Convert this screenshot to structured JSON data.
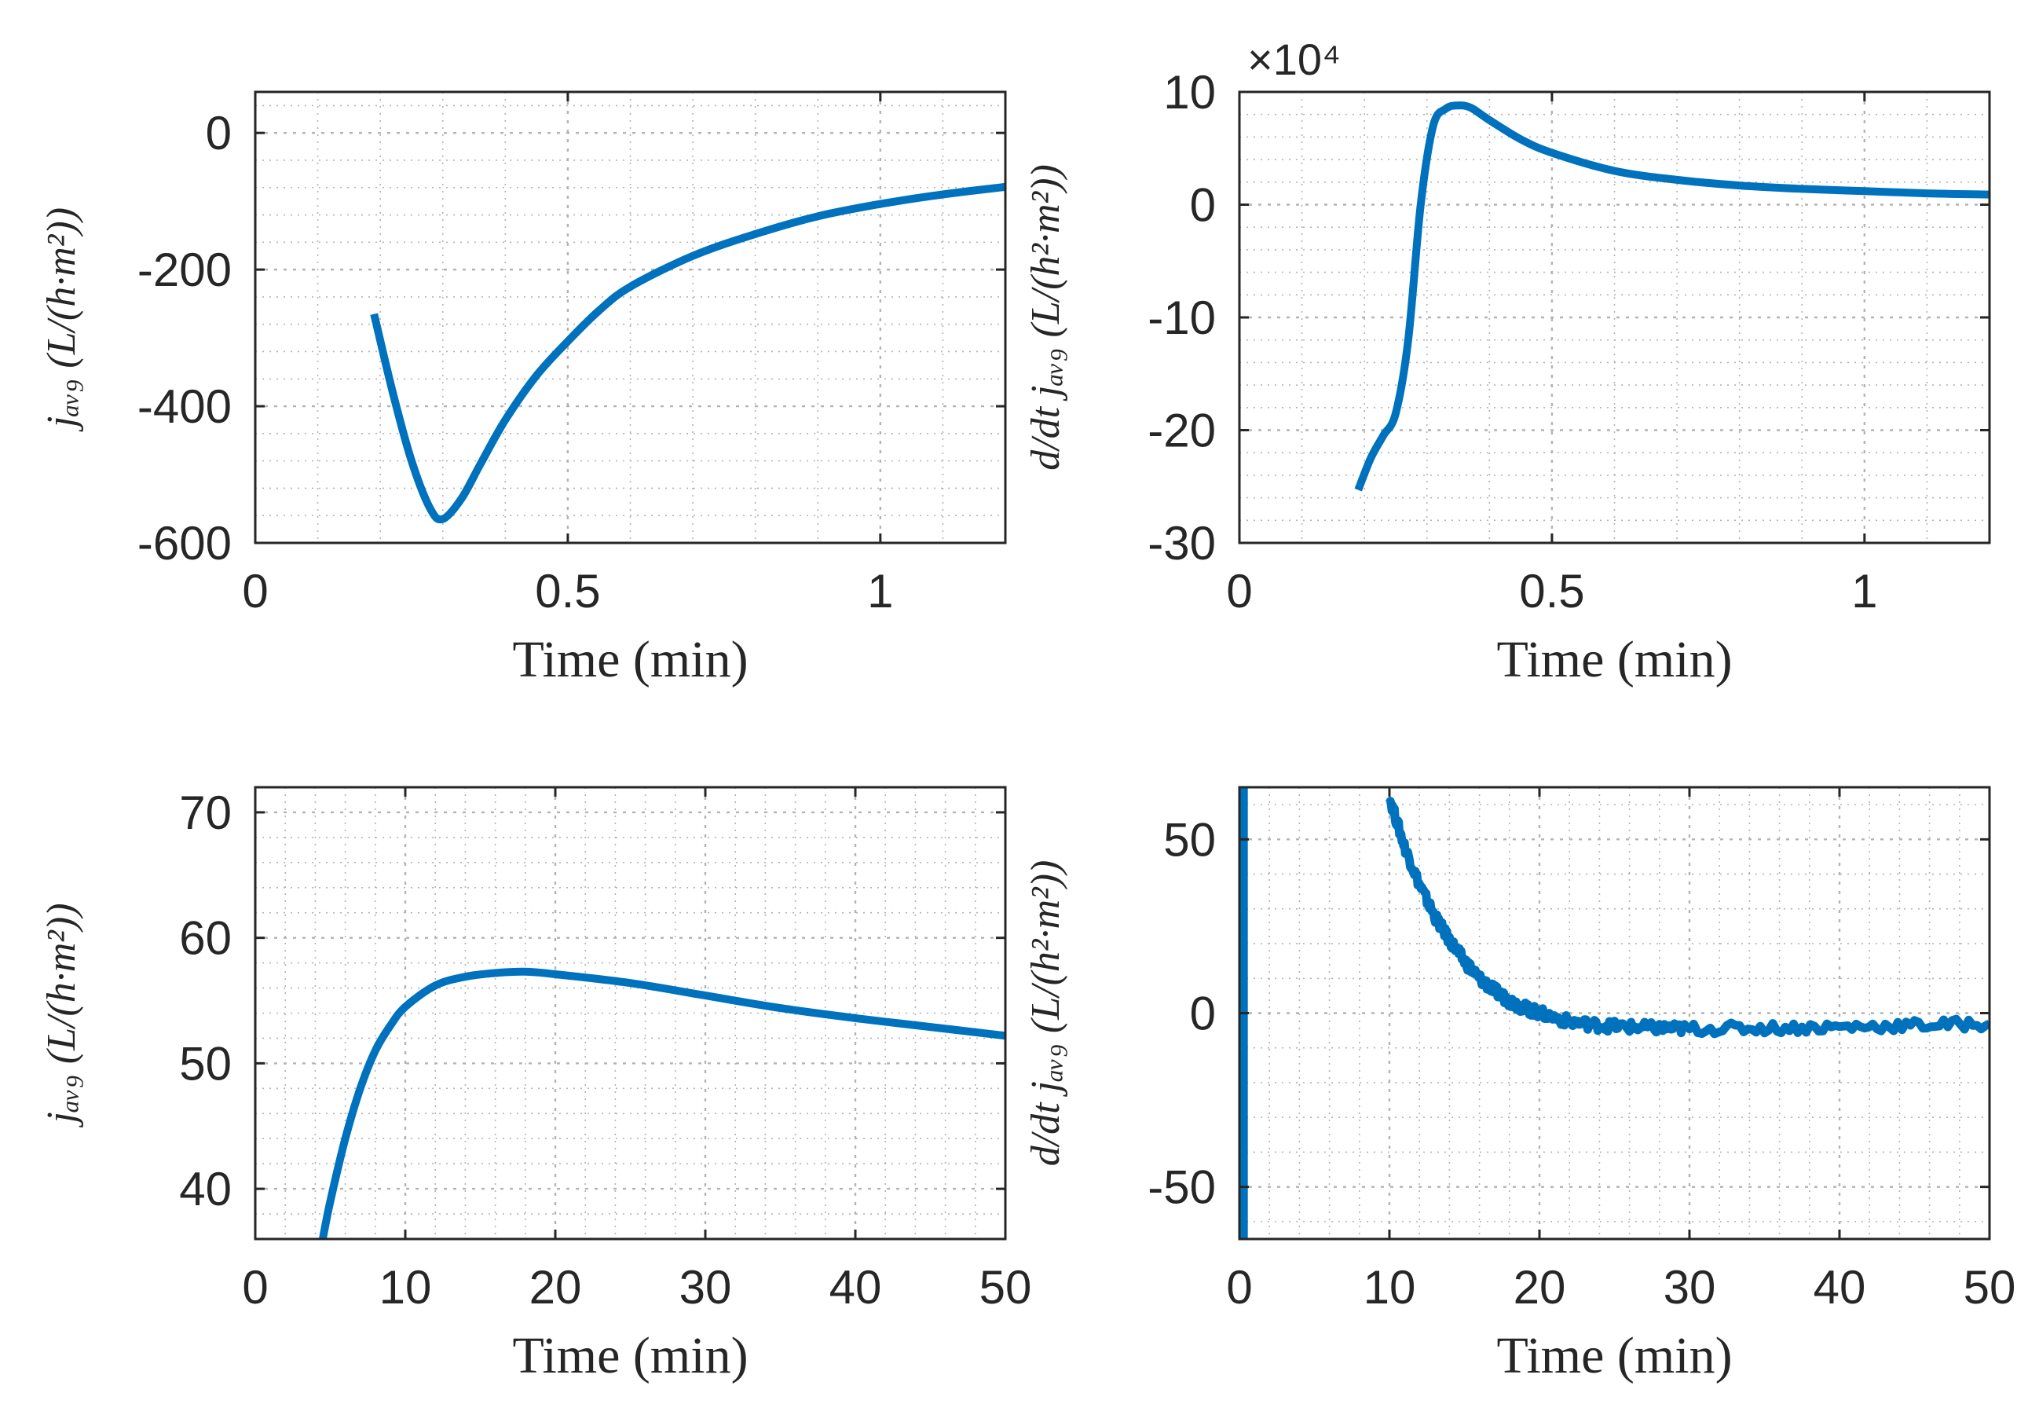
{
  "colors": {
    "line": "#0072BD",
    "axis": "#262626",
    "grid": "#b3b3b3",
    "background": "#ffffff"
  },
  "chart_data": [
    {
      "type": "line",
      "name": "top-left",
      "xlabel": "Time (min)",
      "ylabel": "j_avg (L / h·m²)",
      "ylabel_text": "jₐᵥ₉ (L/(h·m²))",
      "xlim": [
        0,
        1.2
      ],
      "ylim": [
        -600,
        60
      ],
      "xticks": [
        0,
        0.5,
        1
      ],
      "xtick_labels": [
        "0",
        "0.5",
        "1"
      ],
      "yticks": [
        -600,
        -400,
        -200,
        0
      ],
      "ytick_labels": [
        "-600",
        "-400",
        "-200",
        "0"
      ],
      "exponent_label": "",
      "grid": true,
      "minor_grid": true,
      "series": [
        {
          "name": "j_avg",
          "x": [
            0.19,
            0.22,
            0.25,
            0.28,
            0.3,
            0.33,
            0.36,
            0.4,
            0.45,
            0.5,
            0.55,
            0.6,
            0.7,
            0.8,
            0.9,
            1.0,
            1.1,
            1.2
          ],
          "y": [
            -265,
            -380,
            -480,
            -550,
            -565,
            -535,
            -485,
            -420,
            -355,
            -305,
            -260,
            -225,
            -180,
            -148,
            -122,
            -104,
            -90,
            -79
          ]
        }
      ]
    },
    {
      "type": "line",
      "name": "top-right",
      "xlabel": "Time (min)",
      "ylabel": "d/dt j_avg (L / h²·m²)",
      "ylabel_text": "d/dt jₐᵥ₉ (L/(h²·m²))",
      "xlim": [
        0,
        1.2
      ],
      "ylim": [
        -30,
        10
      ],
      "xticks": [
        0,
        0.5,
        1
      ],
      "xtick_labels": [
        "0",
        "0.5",
        "1"
      ],
      "yticks": [
        -30,
        -20,
        -10,
        0,
        10
      ],
      "ytick_labels": [
        "-30",
        "-20",
        "-10",
        "0",
        "10"
      ],
      "exponent_label": "×10⁴",
      "grid": true,
      "minor_grid": true,
      "series": [
        {
          "name": "d/dt j_avg",
          "x": [
            0.19,
            0.21,
            0.23,
            0.25,
            0.27,
            0.29,
            0.31,
            0.33,
            0.35,
            0.37,
            0.4,
            0.45,
            0.5,
            0.6,
            0.7,
            0.8,
            0.9,
            1.0,
            1.1,
            1.2
          ],
          "y": [
            -25.3,
            -22.5,
            -20.5,
            -18.5,
            -12,
            0,
            7,
            8.5,
            8.8,
            8.6,
            7.5,
            5.8,
            4.6,
            3.0,
            2.2,
            1.7,
            1.4,
            1.2,
            1.0,
            0.9
          ]
        }
      ]
    },
    {
      "type": "line",
      "name": "bottom-left",
      "xlabel": "Time (min)",
      "ylabel": "j_avg (L / h·m²)",
      "ylabel_text": "jₐᵥ₉ (L/(h·m²))",
      "xlim": [
        0,
        50
      ],
      "ylim": [
        36,
        72
      ],
      "xticks": [
        0,
        10,
        20,
        30,
        40,
        50
      ],
      "xtick_labels": [
        "0",
        "10",
        "20",
        "30",
        "40",
        "50"
      ],
      "yticks": [
        40,
        50,
        60,
        70
      ],
      "ytick_labels": [
        "40",
        "50",
        "60",
        "70"
      ],
      "exponent_label": "",
      "grid": true,
      "minor_grid": true,
      "series": [
        {
          "name": "j_avg",
          "x": [
            4.5,
            5,
            6,
            7,
            8,
            9,
            10,
            12,
            14,
            16,
            18,
            20,
            25,
            30,
            35,
            40,
            45,
            50
          ],
          "y": [
            36,
            39,
            44,
            48,
            51,
            53,
            54.5,
            56.2,
            56.9,
            57.2,
            57.3,
            57.1,
            56.4,
            55.4,
            54.4,
            53.6,
            52.9,
            52.2
          ]
        }
      ]
    },
    {
      "type": "line",
      "name": "bottom-right",
      "xlabel": "Time (min)",
      "ylabel": "d/dt j_avg (L / h²·m²)",
      "ylabel_text": "d/dt jₐᵥ₉ (L/(h²·m²))",
      "xlim": [
        0,
        50
      ],
      "ylim": [
        -65,
        65
      ],
      "xticks": [
        0,
        10,
        20,
        30,
        40,
        50
      ],
      "xtick_labels": [
        "0",
        "10",
        "20",
        "30",
        "40",
        "50"
      ],
      "yticks": [
        -50,
        0,
        50
      ],
      "ytick_labels": [
        "-50",
        "0",
        "50"
      ],
      "exponent_label": "",
      "grid": true,
      "minor_grid": true,
      "series": [
        {
          "name": "d/dt j_avg (spike near t=0)",
          "x": [
            0.3,
            0.3
          ],
          "y": [
            -65,
            65
          ]
        },
        {
          "name": "d/dt j_avg",
          "noise": 1.6,
          "x": [
            10,
            11,
            12,
            13,
            14,
            15,
            16,
            17,
            18,
            19,
            20,
            22,
            24,
            26,
            28,
            30,
            35,
            40,
            45,
            50
          ],
          "y": [
            62,
            48,
            37,
            28,
            21,
            15,
            10,
            6.5,
            3.5,
            1.5,
            0,
            -2.5,
            -3.5,
            -4,
            -4.3,
            -4.5,
            -4.3,
            -4,
            -3.5,
            -3
          ]
        }
      ]
    }
  ]
}
